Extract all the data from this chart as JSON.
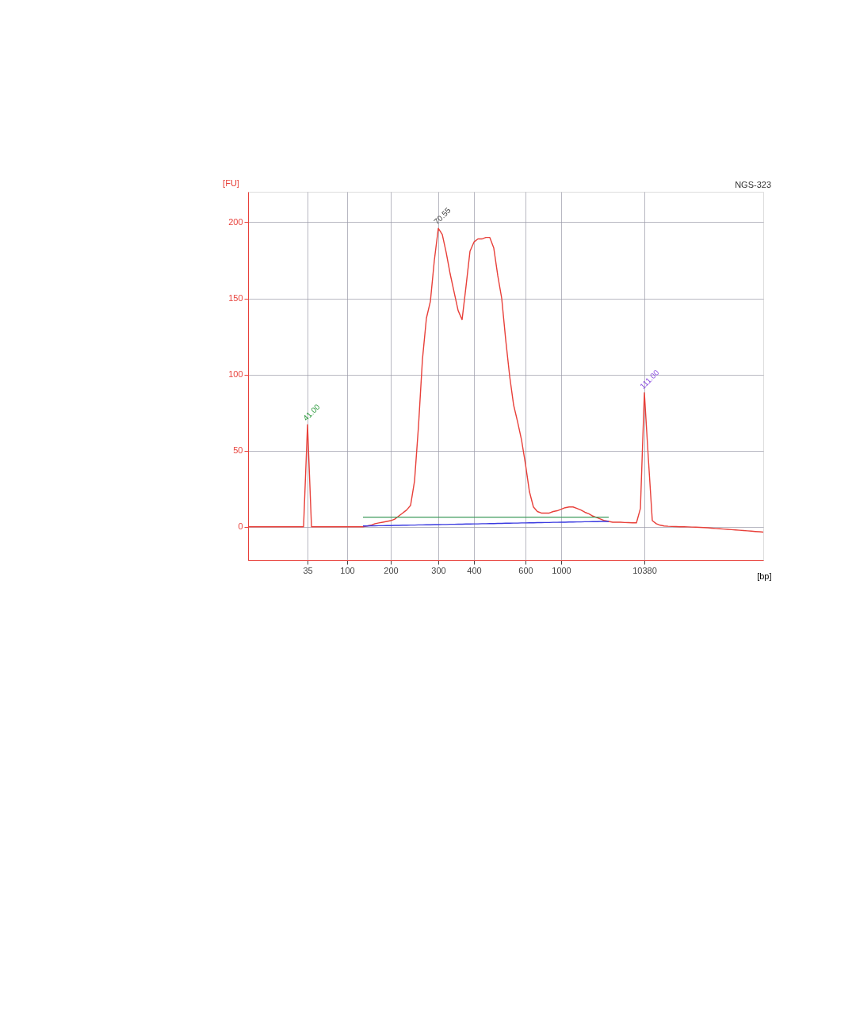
{
  "chart_data": {
    "type": "line",
    "title": "NGS-323",
    "xlabel": "[bp]",
    "ylabel": "[FU]",
    "categories": [
      null,
      null,
      null,
      null,
      null,
      null,
      null,
      null,
      null,
      null,
      null,
      null,
      null,
      null,
      null,
      "35",
      null,
      null,
      null,
      null,
      null,
      null,
      null,
      null,
      null,
      "100",
      null,
      null,
      null,
      null,
      null,
      null,
      null,
      null,
      null,
      null,
      "200",
      null,
      null,
      null,
      null,
      null,
      null,
      null,
      null,
      null,
      null,
      null,
      "300",
      null,
      null,
      null,
      null,
      null,
      null,
      null,
      null,
      "400",
      null,
      null,
      null,
      null,
      null,
      null,
      null,
      null,
      null,
      null,
      null,
      null,
      "600",
      null,
      null,
      null,
      null,
      null,
      null,
      null,
      null,
      "1000",
      null,
      null,
      null,
      null,
      null,
      null,
      null,
      null,
      null,
      null,
      null,
      null,
      null,
      null,
      null,
      null,
      null,
      null,
      null,
      null,
      "10380",
      null,
      null,
      null,
      null,
      null,
      null,
      null,
      null,
      null,
      null,
      null,
      null,
      null,
      null,
      null,
      null,
      null,
      null,
      null,
      null,
      null,
      null,
      null,
      null,
      null,
      null,
      null,
      null,
      null,
      null
    ],
    "series": [
      {
        "color": "#e8403a",
        "values": [
          0,
          0,
          0,
          0,
          0,
          0,
          0,
          0,
          0,
          0,
          0,
          0,
          0,
          0,
          0,
          67,
          0,
          0,
          0,
          0,
          0,
          0,
          0,
          0,
          0,
          0,
          0,
          0,
          0,
          0,
          0.5,
          1,
          2,
          2.5,
          3,
          3.5,
          4,
          5,
          7,
          9,
          11,
          14,
          30,
          66,
          110,
          137,
          148,
          175,
          196,
          192,
          180,
          166,
          154,
          142,
          136,
          158,
          181,
          187,
          189,
          189,
          190,
          190,
          183,
          165,
          150,
          123,
          99,
          80,
          69,
          57,
          41,
          23,
          13,
          10,
          9,
          9,
          9,
          10,
          10.5,
          11.5,
          12.5,
          13,
          13,
          12,
          11,
          9.5,
          8.5,
          7,
          6,
          5,
          4,
          3.5,
          3,
          3,
          3,
          2.8,
          2.7,
          2.6,
          2.6,
          12,
          88,
          45,
          4,
          2,
          1,
          0.5,
          0.3,
          0.2,
          0.1,
          0,
          0,
          -0.1,
          -0.2,
          -0.3,
          -0.4,
          -0.5,
          -0.7,
          -0.9,
          -1.1,
          -1.3,
          -1.5,
          -1.7,
          -1.9,
          -2.1,
          -2.3,
          -2.5,
          -2.7,
          -2.9,
          -3.1,
          -3.3,
          -3.5
        ]
      },
      {
        "color": "#3a3ae0",
        "values": [
          null,
          null,
          null,
          null,
          null,
          null,
          null,
          null,
          null,
          null,
          null,
          null,
          null,
          null,
          null,
          null,
          null,
          null,
          null,
          null,
          null,
          null,
          null,
          null,
          null,
          null,
          null,
          null,
          null,
          0.5,
          0.5,
          0.6,
          0.6,
          0.7,
          0.7,
          0.8,
          0.8,
          0.9,
          0.9,
          1.0,
          1.0,
          1.1,
          1.1,
          1.2,
          1.2,
          1.3,
          1.3,
          1.4,
          1.4,
          1.5,
          1.5,
          1.6,
          1.6,
          1.7,
          1.7,
          1.8,
          1.8,
          1.9,
          1.9,
          2.0,
          2.0,
          2.1,
          2.1,
          2.2,
          2.2,
          2.3,
          2.3,
          2.4,
          2.4,
          2.5,
          2.5,
          2.6,
          2.6,
          2.7,
          2.7,
          2.8,
          2.8,
          2.9,
          2.9,
          3.0,
          3.0,
          3.1,
          3.1,
          3.2,
          3.2,
          3.3,
          3.3,
          3.4,
          3.4,
          3.5,
          3.5,
          3.5,
          null,
          null,
          null,
          null,
          null,
          null,
          null,
          null,
          null,
          null,
          null,
          null,
          null,
          null,
          null,
          null,
          null,
          null,
          null,
          null,
          null,
          null,
          null,
          null,
          null,
          null,
          null,
          null,
          null,
          null,
          null,
          null,
          null,
          null,
          null,
          null,
          null,
          null,
          null
        ]
      },
      {
        "color": "#3c9a5a",
        "values": [
          null,
          null,
          null,
          null,
          null,
          null,
          null,
          null,
          null,
          null,
          null,
          null,
          null,
          null,
          null,
          null,
          null,
          null,
          null,
          null,
          null,
          null,
          null,
          null,
          null,
          null,
          null,
          null,
          null,
          6.3,
          6.3,
          6.3,
          6.3,
          6.3,
          6.3,
          6.3,
          6.3,
          6.3,
          6.3,
          6.3,
          6.3,
          6.3,
          6.3,
          6.3,
          6.3,
          6.3,
          6.3,
          6.3,
          6.3,
          6.3,
          6.3,
          6.3,
          6.3,
          6.3,
          6.3,
          6.3,
          6.3,
          6.3,
          6.3,
          6.3,
          6.3,
          6.3,
          6.3,
          6.3,
          6.3,
          6.3,
          6.3,
          6.3,
          6.3,
          6.3,
          6.3,
          6.3,
          6.3,
          6.3,
          6.3,
          6.3,
          6.3,
          6.3,
          6.3,
          6.3,
          6.3,
          6.3,
          6.3,
          6.3,
          6.3,
          6.3,
          6.3,
          6.3,
          6.3,
          6.3,
          6.3,
          6.3,
          null,
          null,
          null,
          null,
          null,
          null,
          null,
          null,
          null,
          null,
          null,
          null,
          null,
          null,
          null,
          null,
          null,
          null,
          null,
          null,
          null,
          null,
          null,
          null,
          null,
          null,
          null,
          null,
          null,
          null,
          null,
          null,
          null,
          null,
          null,
          null,
          null,
          null,
          null
        ]
      }
    ],
    "annotations": [
      {
        "text": "41.00",
        "x": "35",
        "y": 67
      },
      {
        "text": "70.55",
        "x": "300",
        "y": 196
      },
      {
        "text": "111.00",
        "x": "10380",
        "y": 88
      }
    ],
    "ylim": [
      -22,
      220
    ],
    "yticks": [
      0,
      50,
      100,
      150,
      200
    ],
    "grid": true,
    "marker": "none",
    "line_style": "solid"
  }
}
